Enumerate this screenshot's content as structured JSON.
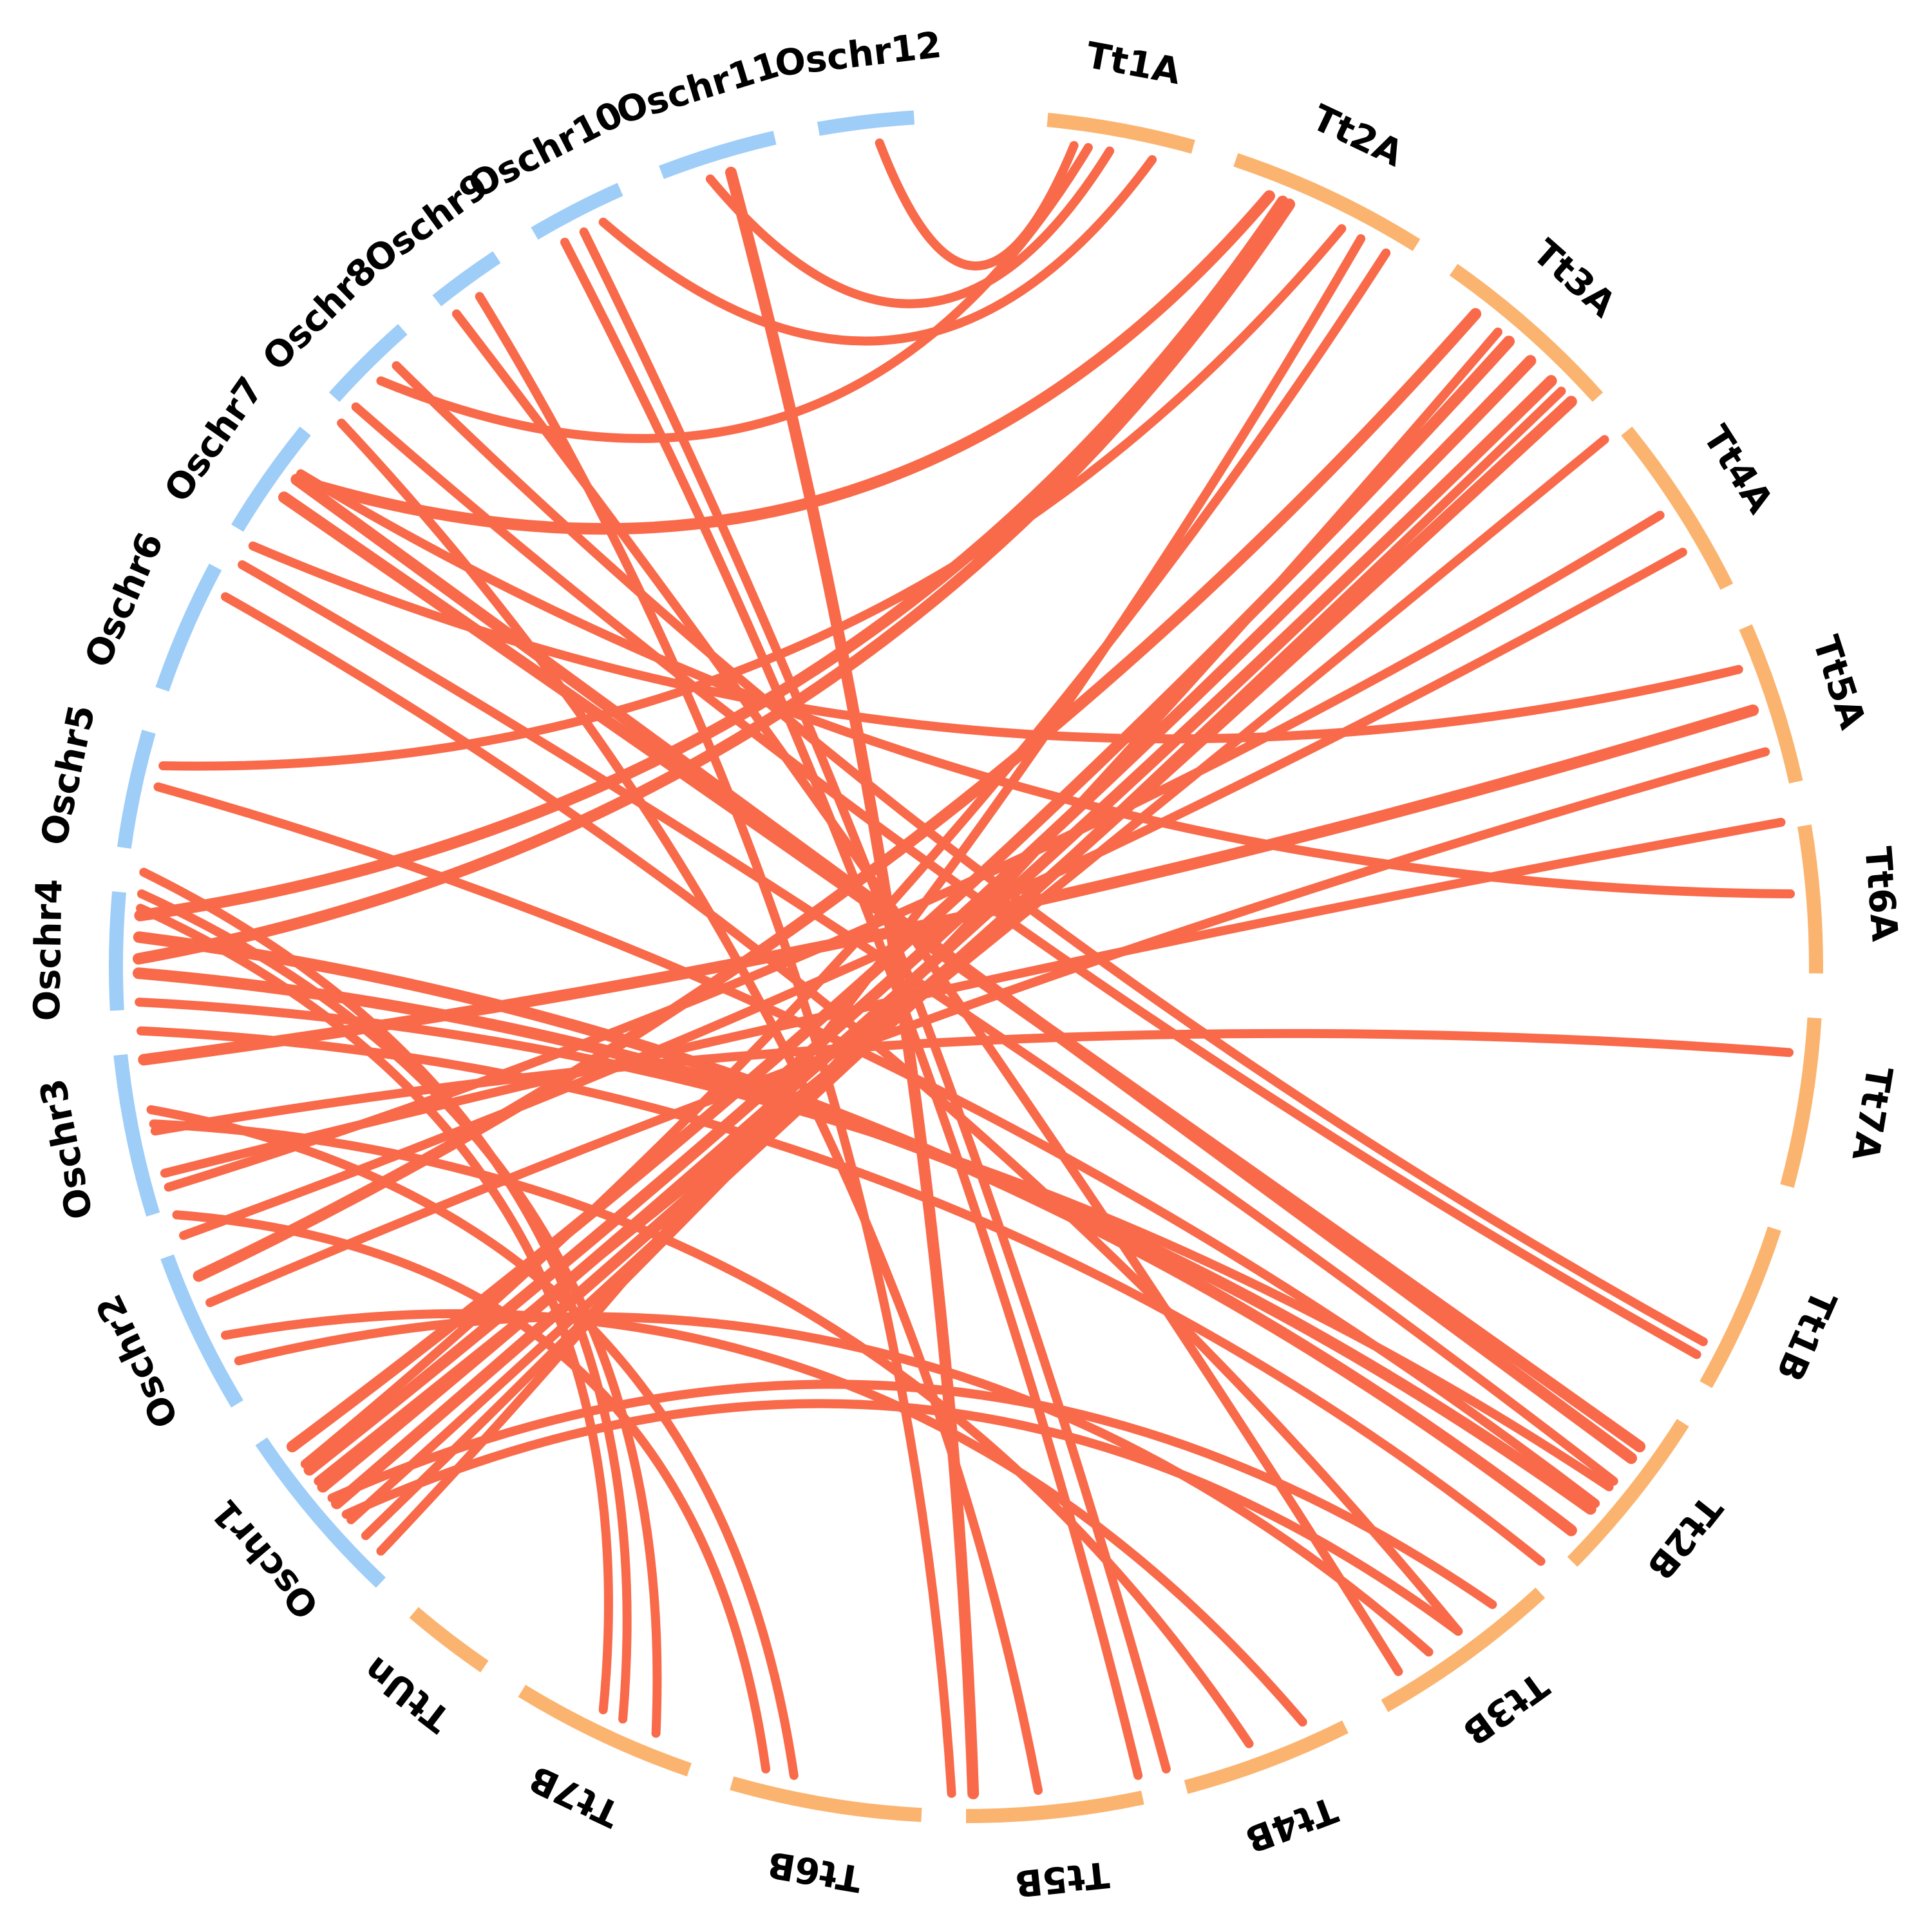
{
  "figure": {
    "type": "circos synteny diagram",
    "colors": {
      "rice_segments": "#9ecdf8",
      "wheat_segments": "#fbb46f",
      "links": "#f86a4a"
    }
  },
  "segments": [
    {
      "id": "Tt1A",
      "label": "Tt1A",
      "group": "wheat"
    },
    {
      "id": "Tt2A",
      "label": "Tt2A",
      "group": "wheat"
    },
    {
      "id": "Tt3A",
      "label": "Tt3A",
      "group": "wheat"
    },
    {
      "id": "Tt4A",
      "label": "Tt4A",
      "group": "wheat"
    },
    {
      "id": "Tt5A",
      "label": "Tt5A",
      "group": "wheat"
    },
    {
      "id": "Tt6A",
      "label": "Tt6A",
      "group": "wheat"
    },
    {
      "id": "Tt7A",
      "label": "Tt7A",
      "group": "wheat"
    },
    {
      "id": "Tt1B",
      "label": "Tt1B",
      "group": "wheat"
    },
    {
      "id": "Tt2B",
      "label": "Tt2B",
      "group": "wheat"
    },
    {
      "id": "Tt3B",
      "label": "Tt3B",
      "group": "wheat"
    },
    {
      "id": "Tt4B",
      "label": "Tt4B",
      "group": "wheat"
    },
    {
      "id": "Tt5B",
      "label": "Tt5B",
      "group": "wheat"
    },
    {
      "id": "Tt6B",
      "label": "Tt6B",
      "group": "wheat"
    },
    {
      "id": "Tt7B",
      "label": "Tt7B",
      "group": "wheat"
    },
    {
      "id": "TtUn",
      "label": "TtUn",
      "group": "wheat"
    },
    {
      "id": "Oschr1",
      "label": "Oschr1",
      "group": "rice"
    },
    {
      "id": "Oschr2",
      "label": "Oschr2",
      "group": "rice"
    },
    {
      "id": "Oschr3",
      "label": "Oschr3",
      "group": "rice"
    },
    {
      "id": "Oschr4",
      "label": "Oschr4",
      "group": "rice"
    },
    {
      "id": "Oschr5",
      "label": "Oschr5",
      "group": "rice"
    },
    {
      "id": "Oschr6",
      "label": "Oschr6",
      "group": "rice"
    },
    {
      "id": "Oschr7",
      "label": "Oschr7",
      "group": "rice"
    },
    {
      "id": "Oschr8",
      "label": "Oschr8",
      "group": "rice"
    },
    {
      "id": "Oschr9",
      "label": "Oschr9",
      "group": "rice"
    },
    {
      "id": "Oschr10",
      "label": "Oschr10",
      "group": "rice"
    },
    {
      "id": "Oschr11",
      "label": "Oschr11",
      "group": "rice"
    },
    {
      "id": "Oschr12",
      "label": "Oschr12",
      "group": "rice"
    }
  ],
  "links": [
    {
      "from": "Oschr12",
      "to": "Tt1A"
    },
    {
      "from": "Oschr11",
      "to": "Tt1A"
    },
    {
      "from": "Oschr11",
      "to": "Tt5B"
    },
    {
      "from": "Oschr10",
      "to": "Tt1A"
    },
    {
      "from": "Oschr10",
      "to": "Tt4B"
    },
    {
      "from": "Oschr8",
      "to": "Tt1A"
    },
    {
      "from": "Oschr8",
      "to": "Tt1B"
    },
    {
      "from": "Oschr8",
      "to": "Tt1B"
    },
    {
      "from": "Oschr7",
      "to": "Tt2A"
    },
    {
      "from": "Oschr7",
      "to": "Tt2B"
    },
    {
      "from": "Oschr7",
      "to": "Tt2B"
    },
    {
      "from": "Oschr7",
      "to": "Tt5A"
    },
    {
      "from": "Oschr7",
      "to": "Tt6A"
    },
    {
      "from": "Oschr7",
      "to": "Tt2B"
    },
    {
      "from": "Oschr5",
      "to": "Tt2A"
    },
    {
      "from": "Oschr5",
      "to": "Tt2B"
    },
    {
      "from": "Oschr4",
      "to": "Tt2A"
    },
    {
      "from": "Oschr4",
      "to": "Tt2A"
    },
    {
      "from": "Oschr4",
      "to": "Tt2B"
    },
    {
      "from": "Oschr4",
      "to": "Tt2B"
    },
    {
      "from": "Oschr4",
      "to": "Tt2B"
    },
    {
      "from": "Oschr4",
      "to": "Tt3B"
    },
    {
      "from": "Oschr3",
      "to": "Tt5A"
    },
    {
      "from": "Oschr3",
      "to": "Tt7A"
    },
    {
      "from": "Oschr3",
      "to": "Tt6A"
    },
    {
      "from": "Oschr3",
      "to": "Tt4A"
    },
    {
      "from": "Oschr3",
      "to": "Tt4A"
    },
    {
      "from": "Oschr2",
      "to": "Tt3A"
    },
    {
      "from": "Oschr2",
      "to": "Tt6A"
    },
    {
      "from": "Oschr1",
      "to": "Tt3A"
    },
    {
      "from": "Oschr1",
      "to": "Tt3A"
    },
    {
      "from": "Oschr1",
      "to": "Tt3A"
    },
    {
      "from": "Oschr1",
      "to": "Tt3A"
    },
    {
      "from": "Oschr1",
      "to": "Tt3A"
    },
    {
      "from": "Oschr1",
      "to": "Tt3A"
    },
    {
      "from": "Oschr1",
      "to": "Tt2A"
    },
    {
      "from": "Oschr1",
      "to": "Tt2A"
    },
    {
      "from": "Oschr1",
      "to": "Tt4A"
    },
    {
      "from": "Oschr1",
      "to": "Tt3B"
    },
    {
      "from": "Oschr1",
      "to": "Tt3B"
    },
    {
      "from": "Oschr2",
      "to": "Tt3B"
    },
    {
      "from": "Oschr2",
      "to": "Tt4B"
    },
    {
      "from": "Oschr3",
      "to": "Tt4B"
    },
    {
      "from": "Oschr3",
      "to": "Tt6B"
    },
    {
      "from": "Oschr2",
      "to": "Tt6B"
    },
    {
      "from": "Oschr4",
      "to": "Tt7B"
    },
    {
      "from": "Oschr4",
      "to": "Tt7B"
    },
    {
      "from": "Oschr4",
      "to": "Tt7B"
    },
    {
      "from": "Oschr8",
      "to": "Tt5B"
    },
    {
      "from": "Oschr9",
      "to": "Tt5B"
    },
    {
      "from": "Oschr10",
      "to": "Tt4B"
    },
    {
      "from": "Oschr9",
      "to": "Tt3B"
    },
    {
      "from": "Oschr6",
      "to": "Tt3B"
    }
  ]
}
